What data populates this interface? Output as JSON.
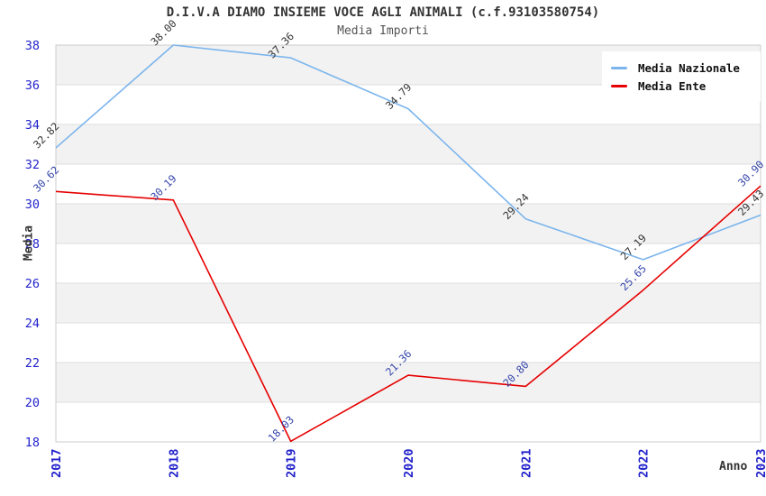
{
  "chart_data": {
    "type": "line",
    "title": "D.I.V.A DIAMO INSIEME VOCE AGLI ANIMALI (c.f.93103580754)",
    "subtitle": "Media Importi",
    "xlabel": "Anno",
    "ylabel": "Media",
    "x": [
      2017,
      2018,
      2019,
      2020,
      2021,
      2022,
      2023
    ],
    "series": [
      {
        "name": "Media Nazionale",
        "color": "#7cb5ec",
        "label_color": "#333333",
        "values": [
          32.82,
          38.0,
          37.36,
          34.79,
          29.24,
          27.19,
          29.43
        ]
      },
      {
        "name": "Media Ente",
        "color": "#e60000",
        "label_color": "#3344aa",
        "values": [
          30.62,
          30.19,
          18.03,
          21.36,
          20.8,
          25.65,
          30.9
        ]
      }
    ],
    "ylim": [
      18,
      38
    ],
    "ytick_step": 2,
    "grid": "alternating-horizontal-bands",
    "legend_position": "top-right"
  },
  "colors": {
    "axis_tick_text": "#2222cc",
    "band_fill": "#f2f2f2",
    "grid_line": "#dddddd",
    "plot_border": "#cccccc",
    "title_text": "#333333",
    "subtitle_text": "#555555"
  }
}
